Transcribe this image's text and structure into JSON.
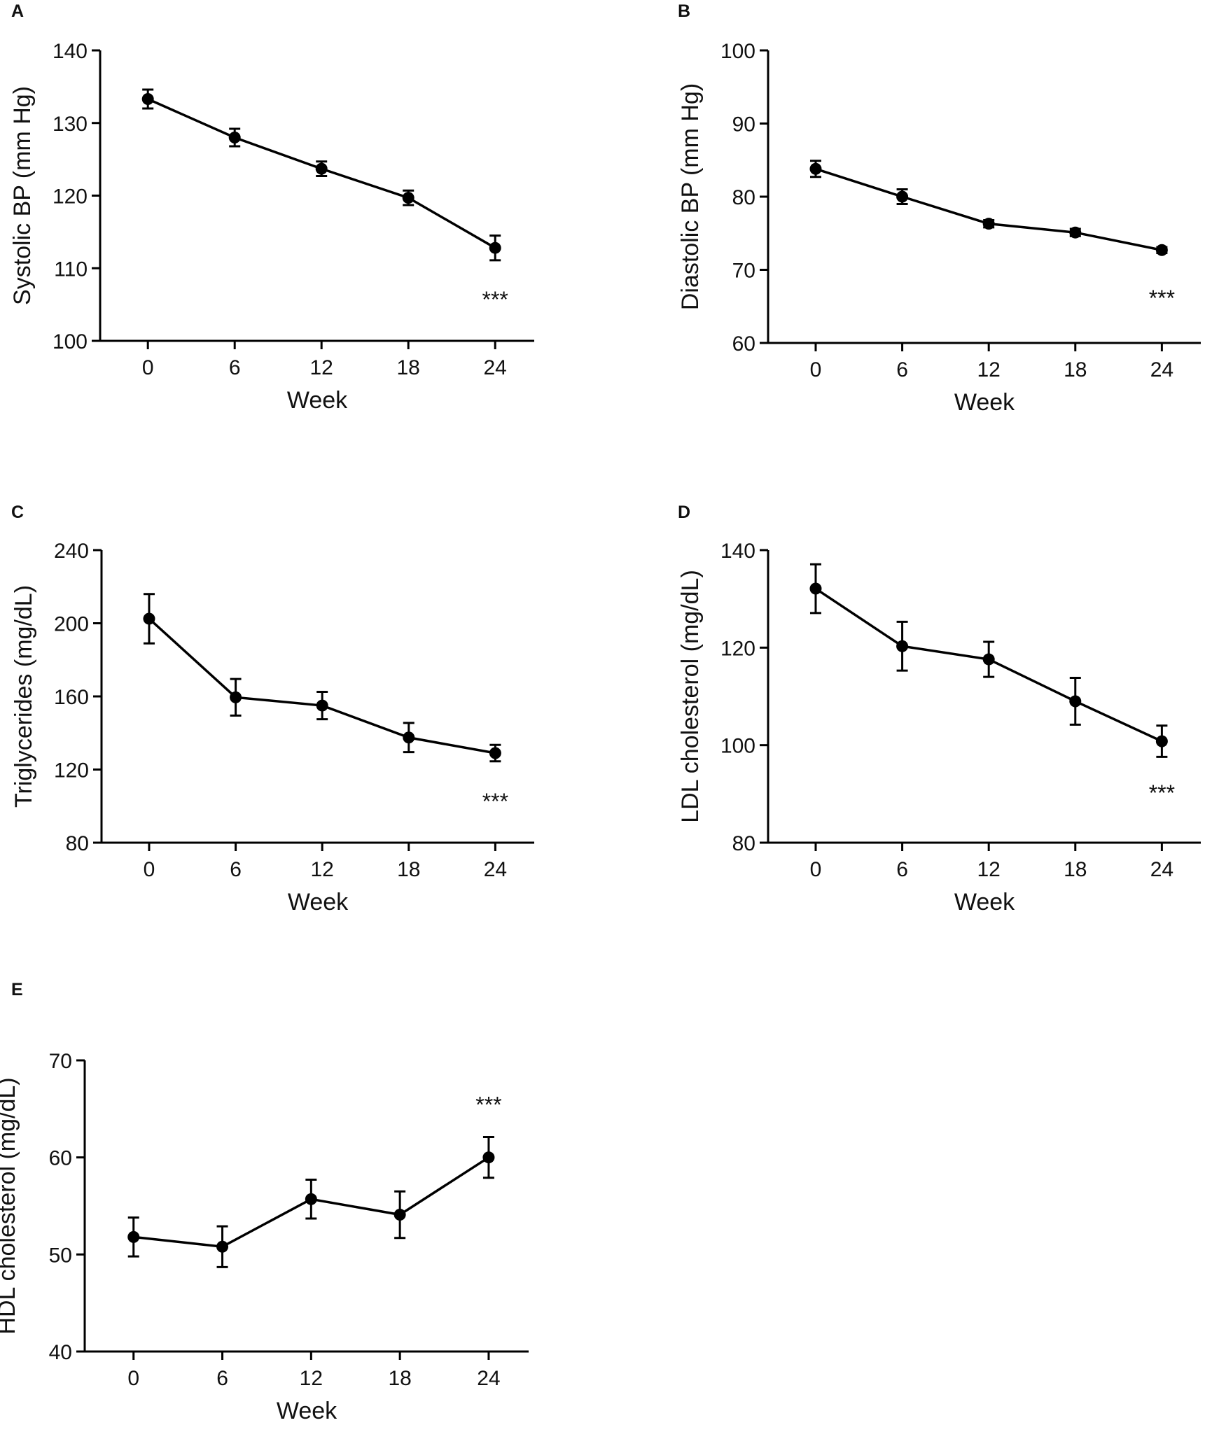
{
  "figure": {
    "line_color": "#000000",
    "background": "#ffffff"
  },
  "chart_data": [
    {
      "panel": "A",
      "type": "line",
      "x": [
        0,
        6,
        12,
        18,
        24
      ],
      "xticks": [
        "0",
        "6",
        "12",
        "18",
        "24"
      ],
      "xlabel": "Week",
      "ylabel": "Systolic BP (mm Hg)",
      "ylim": [
        100,
        140
      ],
      "yticks": [
        100,
        110,
        120,
        130,
        140
      ],
      "series": [
        {
          "name": "Systolic BP",
          "values": [
            133.3,
            128.0,
            123.7,
            119.7,
            112.8
          ],
          "err": [
            1.3,
            1.2,
            1.0,
            1.0,
            1.7
          ]
        }
      ],
      "annotations": [
        {
          "text": "***",
          "x": 24,
          "y": 105.8
        }
      ]
    },
    {
      "panel": "B",
      "type": "line",
      "x": [
        0,
        6,
        12,
        18,
        24
      ],
      "xticks": [
        "0",
        "6",
        "12",
        "18",
        "24"
      ],
      "xlabel": "Week",
      "ylabel": "Diastolic BP (mm Hg)",
      "ylim": [
        60,
        100
      ],
      "yticks": [
        60,
        70,
        80,
        90,
        100
      ],
      "series": [
        {
          "name": "Diastolic BP",
          "values": [
            83.8,
            80.0,
            76.3,
            75.1,
            72.7
          ],
          "err": [
            1.1,
            1.0,
            0.5,
            0.5,
            0.4
          ]
        }
      ],
      "annotations": [
        {
          "text": "***",
          "x": 24,
          "y": 66.2
        }
      ]
    },
    {
      "panel": "C",
      "type": "line",
      "x": [
        0,
        6,
        12,
        18,
        24
      ],
      "xticks": [
        "0",
        "6",
        "12",
        "18",
        "24"
      ],
      "xlabel": "Week",
      "ylabel": "Triglycerides (mg/dL)",
      "ylim": [
        80,
        240
      ],
      "yticks": [
        80,
        120,
        160,
        200,
        240
      ],
      "series": [
        {
          "name": "Triglycerides",
          "values": [
            202.5,
            159.5,
            155.0,
            137.5,
            129.0
          ],
          "err": [
            13.5,
            10.0,
            7.5,
            8.0,
            4.5
          ]
        }
      ],
      "annotations": [
        {
          "text": "***",
          "x": 24,
          "y": 103
        }
      ]
    },
    {
      "panel": "D",
      "type": "line",
      "x": [
        0,
        6,
        12,
        18,
        24
      ],
      "xticks": [
        "0",
        "6",
        "12",
        "18",
        "24"
      ],
      "xlabel": "Week",
      "ylabel": "LDL cholesterol (mg/dL)",
      "ylim": [
        80,
        140
      ],
      "yticks": [
        80,
        100,
        120,
        140
      ],
      "series": [
        {
          "name": "LDL cholesterol",
          "values": [
            132.1,
            120.3,
            117.6,
            109.0,
            100.8
          ],
          "err": [
            5.0,
            5.0,
            3.6,
            4.8,
            3.2
          ]
        }
      ],
      "annotations": [
        {
          "text": "***",
          "x": 24,
          "y": 90.3
        }
      ]
    },
    {
      "panel": "E",
      "type": "line",
      "x": [
        0,
        6,
        12,
        18,
        24
      ],
      "xticks": [
        "0",
        "6",
        "12",
        "18",
        "24"
      ],
      "xlabel": "Week",
      "ylabel": "HDL cholesterol (mg/dL)",
      "ylim": [
        40,
        70
      ],
      "yticks": [
        40,
        50,
        60,
        70
      ],
      "series": [
        {
          "name": "HDL cholesterol",
          "values": [
            51.8,
            50.8,
            55.7,
            54.1,
            60.0
          ],
          "err": [
            2.0,
            2.1,
            2.0,
            2.4,
            2.1
          ]
        }
      ],
      "annotations": [
        {
          "text": "***",
          "x": 24,
          "y": 65.5
        }
      ]
    }
  ]
}
